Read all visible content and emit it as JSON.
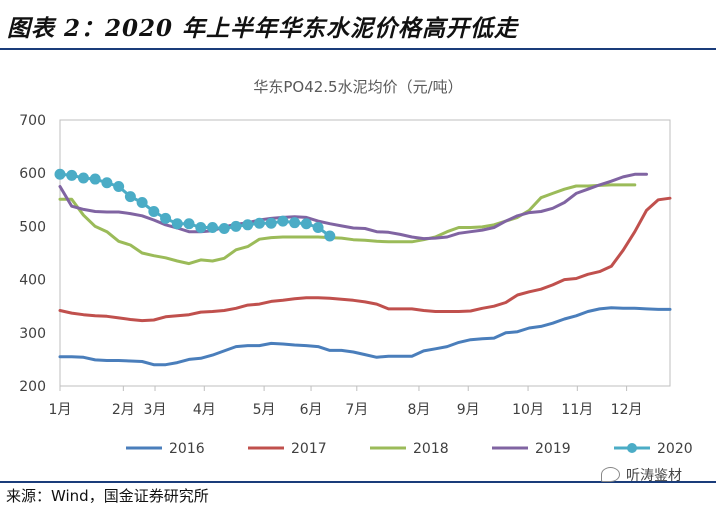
{
  "figure_title": "图表 2：2020 年上半年华东水泥价格高开低走",
  "source": "来源：Wind，国金证券研究所",
  "watermark": "听涛鉴材",
  "chart_data": {
    "type": "line",
    "title": "华东PO42.5水泥均价（元/吨）",
    "xlabel": "",
    "ylabel": "",
    "ylim": [
      200,
      700
    ],
    "yticks": [
      200,
      300,
      400,
      500,
      600,
      700
    ],
    "x_tick_labels": [
      "1月",
      "2月",
      "3月",
      "4月",
      "5月",
      "6月",
      "7月",
      "8月",
      "9月",
      "10月",
      "11月",
      "12月"
    ],
    "x_tick_weeks": [
      0,
      5.4,
      8.1,
      12.3,
      17.4,
      21.4,
      25.3,
      30.6,
      34.8,
      39.9,
      44.1,
      48.3
    ],
    "x_max_week": 52,
    "grid": false,
    "legend_position": "bottom",
    "series": [
      {
        "name": "2016",
        "color": "#4a7ebb",
        "marker": false,
        "values": [
          255,
          255,
          254,
          249,
          248,
          248,
          247,
          246,
          240,
          240,
          244,
          250,
          252,
          258,
          266,
          274,
          276,
          276,
          280,
          279,
          277,
          276,
          274,
          267,
          267,
          264,
          259,
          254,
          256,
          256,
          256,
          266,
          270,
          274,
          282,
          287,
          289,
          290,
          300,
          302,
          309,
          312,
          318,
          326,
          332,
          340,
          345,
          347,
          346,
          346,
          345,
          344,
          344
        ]
      },
      {
        "name": "2017",
        "color": "#c0504d",
        "marker": false,
        "values": [
          342,
          337,
          334,
          332,
          331,
          328,
          325,
          323,
          324,
          330,
          332,
          334,
          339,
          340,
          342,
          346,
          352,
          354,
          359,
          361,
          364,
          366,
          366,
          365,
          363,
          361,
          358,
          354,
          345,
          345,
          345,
          342,
          340,
          340,
          340,
          341,
          346,
          350,
          357,
          371,
          377,
          382,
          390,
          400,
          402,
          410,
          415,
          425,
          455,
          490,
          530,
          550,
          553
        ]
      },
      {
        "name": "2018",
        "color": "#9bbb59",
        "marker": false,
        "values": [
          551,
          551,
          521,
          500,
          490,
          472,
          465,
          450,
          445,
          441,
          435,
          430,
          437,
          435,
          440,
          456,
          462,
          476,
          479,
          480,
          480,
          480,
          480,
          479,
          478,
          475,
          474,
          472,
          471,
          471,
          471,
          475,
          480,
          490,
          498,
          498,
          499,
          503,
          510,
          517,
          530,
          554,
          562,
          570,
          576,
          576,
          577,
          578,
          578,
          578
        ]
      },
      {
        "name": "2019",
        "color": "#8064a2",
        "marker": false,
        "values": [
          575,
          538,
          532,
          528,
          527,
          527,
          524,
          520,
          512,
          503,
          497,
          490,
          490,
          492,
          499,
          504,
          507,
          512,
          515,
          517,
          518,
          517,
          510,
          505,
          501,
          497,
          496,
          490,
          489,
          485,
          480,
          477,
          478,
          480,
          487,
          490,
          493,
          498,
          510,
          520,
          526,
          528,
          534,
          545,
          562,
          570,
          578,
          585,
          593,
          598,
          598
        ]
      },
      {
        "name": "2020",
        "color": "#4bacc6",
        "marker": true,
        "values": [
          598,
          596,
          591,
          589,
          582,
          575,
          556,
          545,
          528,
          515,
          505,
          505,
          498,
          498,
          496,
          500,
          503,
          506,
          506,
          510,
          507,
          505,
          498,
          482
        ]
      }
    ]
  }
}
